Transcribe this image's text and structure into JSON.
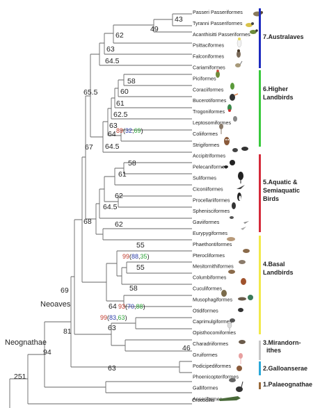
{
  "taxa": [
    "Passeri Passeriformes",
    "Tyranni Passeriformes",
    "Acanthisitti Passeriformes",
    "Psittaciformes",
    "Falconiformes",
    "Cariamiformes",
    "Piciformes",
    "Coraciiformes",
    "Bucerotiformes",
    "Trogoniformes",
    "Leptosomiformes",
    "Coliiformes",
    "Strigiformes",
    "Accipitriformes",
    "Pelecaniformes",
    "Suliformes",
    "Ciconiiformes",
    "Procellariiformes",
    "Sphenisciformes",
    "Gaviiformes",
    "Eurypygiformes",
    "Phaethontiformes",
    "Pterocliformes",
    "Mesitornithiformes",
    "Columbiformes",
    "Cuculiformes",
    "Musophagiformes",
    "Otidiformes",
    "Caprimulgiformes",
    "Opisthocomiformes",
    "Charadriiformes",
    "Gruiformes",
    "Podicipediformes",
    "Phoenicopteriformes",
    "Galliformes",
    "Anseriformes",
    "Struthioniformes",
    "Crocodilia"
  ],
  "node_ages": {
    "n43": "43",
    "n49": "49",
    "n62a": "62",
    "n63a": "63",
    "n64_5a": "64.5",
    "n65_5": "65.5",
    "n58a": "58",
    "n60": "60",
    "n61a": "61",
    "n62_5": "62.5",
    "n63b": "63",
    "n64": "64",
    "n64_5b": "64.5",
    "n67": "67",
    "n58b": "58",
    "n61b": "61",
    "n62b": "62",
    "n64_5c": "64.5",
    "n62c": "62",
    "n68": "68",
    "n55a": "55",
    "n55b": "55",
    "n58c": "58",
    "n64c": "64",
    "n63c": "63",
    "n69": "69",
    "n81": "81",
    "n46": "46",
    "n94": "94",
    "n63d": "63",
    "n251": "251"
  },
  "support": {
    "s1": {
      "a": "89",
      "o": "(",
      "b": "32",
      "c": ",",
      "d": "69",
      "e": ")"
    },
    "s2": {
      "a": "99",
      "o": "(",
      "b": "88",
      "c": ",",
      "d": "35",
      "e": ")"
    },
    "s3": {
      "a": "93",
      "o": "(",
      "b": "70",
      "c": ",",
      "d": "88",
      "e": ")"
    },
    "s4": {
      "a": "99",
      "o": "(",
      "b": "83",
      "c": ",",
      "d": "63",
      "e": ")"
    }
  },
  "clade_labels": {
    "neoaves": "Neoaves",
    "neognathae": "Neognathae"
  },
  "groups": [
    {
      "lines": [
        "7.Australaves"
      ],
      "color": "#1d2bbf"
    },
    {
      "lines": [
        "6.Higher",
        "Landbirds"
      ],
      "color": "#38c93c"
    },
    {
      "lines": [
        "5.Aquatic &",
        "Semiaquatic",
        "Birds"
      ],
      "color": "#d42a3a"
    },
    {
      "lines": [
        "4.Basal",
        "Landbirds"
      ],
      "color": "#f2e94a"
    },
    {
      "lines": [
        "3.Mirandorn-",
        "ithes"
      ],
      "color": "#c8c8c8"
    },
    {
      "lines": [
        "2.Galloanserae"
      ],
      "color": "#2aa8d8"
    },
    {
      "lines": [
        "1.Palaeognathae"
      ],
      "color": "#9a6a3a"
    }
  ],
  "colors": {
    "support_posterior": "#c0392b",
    "support_ml": "#2a3ca8",
    "support_mp": "#2fa33a"
  }
}
